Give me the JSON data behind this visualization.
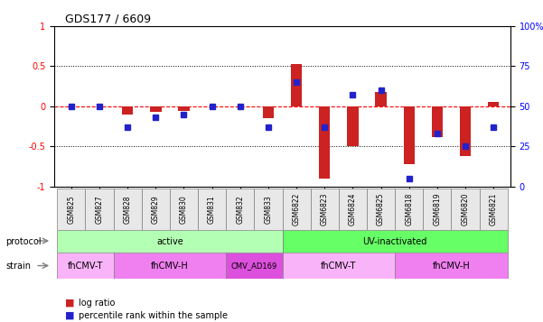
{
  "title": "GDS177 / 6609",
  "samples": [
    "GSM825",
    "GSM827",
    "GSM828",
    "GSM829",
    "GSM830",
    "GSM831",
    "GSM832",
    "GSM833",
    "GSM6822",
    "GSM6823",
    "GSM6824",
    "GSM6825",
    "GSM6818",
    "GSM6819",
    "GSM6820",
    "GSM6821"
  ],
  "log_ratio": [
    0.0,
    0.0,
    -0.1,
    -0.07,
    -0.06,
    0.0,
    0.0,
    -0.15,
    0.53,
    -0.9,
    -0.5,
    0.18,
    -0.72,
    -0.38,
    -0.62,
    0.05
  ],
  "pct_rank": [
    50,
    50,
    37,
    43,
    45,
    50,
    50,
    37,
    65,
    37,
    57,
    60,
    5,
    33,
    25,
    37
  ],
  "protocol_groups": [
    {
      "label": "active",
      "start": 0,
      "end": 7
    },
    {
      "label": "UV-inactivated",
      "start": 8,
      "end": 15
    }
  ],
  "strain_groups": [
    {
      "label": "fhCMV-T",
      "start": 0,
      "end": 1,
      "color": "#f9b4f9"
    },
    {
      "label": "fhCMV-H",
      "start": 2,
      "end": 5,
      "color": "#f080f0"
    },
    {
      "label": "CMV_AD169",
      "start": 6,
      "end": 7,
      "color": "#e060e0"
    },
    {
      "label": "fhCMV-T",
      "start": 8,
      "end": 11,
      "color": "#f9b4f9"
    },
    {
      "label": "fhCMV-H",
      "start": 12,
      "end": 15,
      "color": "#f080f0"
    }
  ],
  "bar_color": "#cc2222",
  "dot_color": "#2222cc",
  "protocol_color_active": "#b3ffb3",
  "protocol_color_uv": "#66ff66",
  "ylim": [
    -1,
    1
  ],
  "y2lim": [
    0,
    100
  ],
  "yticks": [
    -1,
    -0.5,
    0,
    0.5,
    1
  ],
  "y2ticks": [
    0,
    25,
    50,
    75,
    100
  ]
}
